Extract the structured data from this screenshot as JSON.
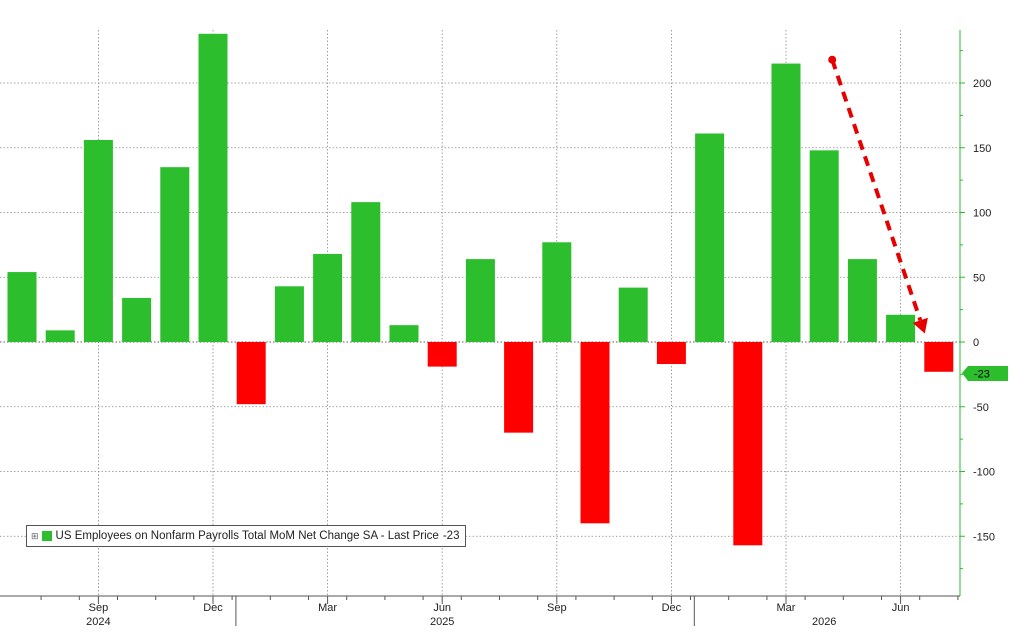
{
  "chart_data": {
    "type": "bar",
    "series": [
      {
        "name": "US Employees on Nonfarm Payrolls Total MoM Net Change SA - Last Price",
        "last_value": "-23",
        "values": [
          54,
          9,
          156,
          34,
          135,
          238,
          -48,
          43,
          68,
          108,
          13,
          -19,
          64,
          -70,
          77,
          -140,
          42,
          -17,
          161,
          -157,
          215,
          148,
          64,
          21,
          -23
        ]
      }
    ],
    "ylim": [
      -200,
      240
    ],
    "y_ticks": [
      200,
      150,
      100,
      50,
      0,
      -50,
      -100,
      -150
    ],
    "x_ticks": [
      {
        "label": "Sep",
        "index": 2
      },
      {
        "label": "Dec",
        "index": 5
      },
      {
        "label": "Mar",
        "index": 8
      },
      {
        "label": "Jun",
        "index": 11
      },
      {
        "label": "Sep",
        "index": 14
      },
      {
        "label": "Dec",
        "index": 17
      },
      {
        "label": "Mar",
        "index": 20
      },
      {
        "label": "Jun",
        "index": 23
      }
    ],
    "year_labels": [
      {
        "label": "2024",
        "index": 2
      },
      {
        "label": "2025",
        "index": 11
      },
      {
        "label": "2026",
        "index": 21
      }
    ],
    "grid": true,
    "legend_position": "bottom-left",
    "annotation": {
      "type": "dashed-arrow",
      "from_index": 21,
      "from_value": 218,
      "to_index": 24,
      "to_value": 5
    }
  },
  "colors": {
    "positive": "#2cbe2c",
    "negative": "#ff0000",
    "axis": "#2cbe2c",
    "grid": "#888888",
    "arrow": "#e60000",
    "last_price_tag": "#2cbe2c"
  },
  "legend": {
    "expander_icon": "⊞",
    "label": "US Employees on Nonfarm Payrolls Total MoM Net Change SA - Last Price",
    "value": "-23"
  },
  "last_price_tag": "-23"
}
